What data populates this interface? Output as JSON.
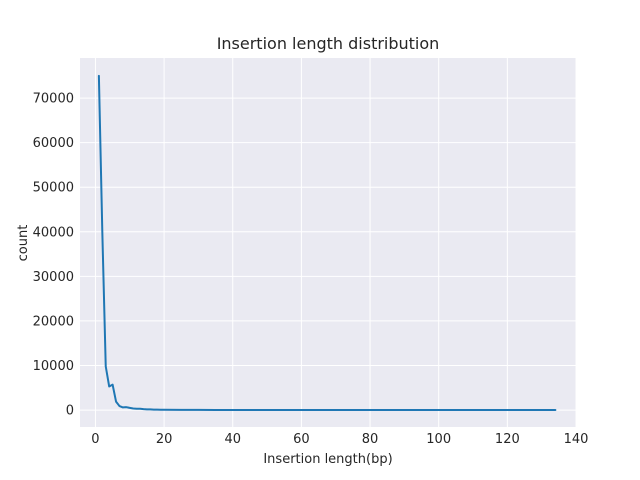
{
  "chart_data": {
    "type": "line",
    "title": "Insertion length distribution",
    "xlabel": "Insertion length(bp)",
    "ylabel": "count",
    "xlim": [
      -4.5,
      140
    ],
    "ylim": [
      -3800,
      79000
    ],
    "x_ticks": [
      0,
      20,
      40,
      60,
      80,
      100,
      120,
      140
    ],
    "y_ticks": [
      0,
      10000,
      20000,
      30000,
      40000,
      50000,
      60000,
      70000
    ],
    "grid": true,
    "legend": "none",
    "colors": {
      "line": "#1f77b4",
      "plot_background": "#eaeaf2",
      "grid": "#ffffff"
    },
    "series": [
      {
        "x": [
          1,
          2,
          3,
          4,
          5,
          6,
          7,
          8,
          9,
          10,
          11,
          12,
          13,
          14,
          15,
          16,
          17,
          18,
          19,
          20,
          25,
          30,
          35,
          40,
          50,
          60,
          70,
          80,
          90,
          100,
          110,
          120,
          130,
          134
        ],
        "values": [
          75000,
          40000,
          9800,
          5300,
          5700,
          1900,
          900,
          600,
          650,
          500,
          350,
          300,
          300,
          200,
          150,
          150,
          100,
          100,
          80,
          60,
          40,
          30,
          20,
          20,
          15,
          10,
          10,
          10,
          10,
          10,
          10,
          10,
          10,
          10
        ]
      }
    ]
  }
}
